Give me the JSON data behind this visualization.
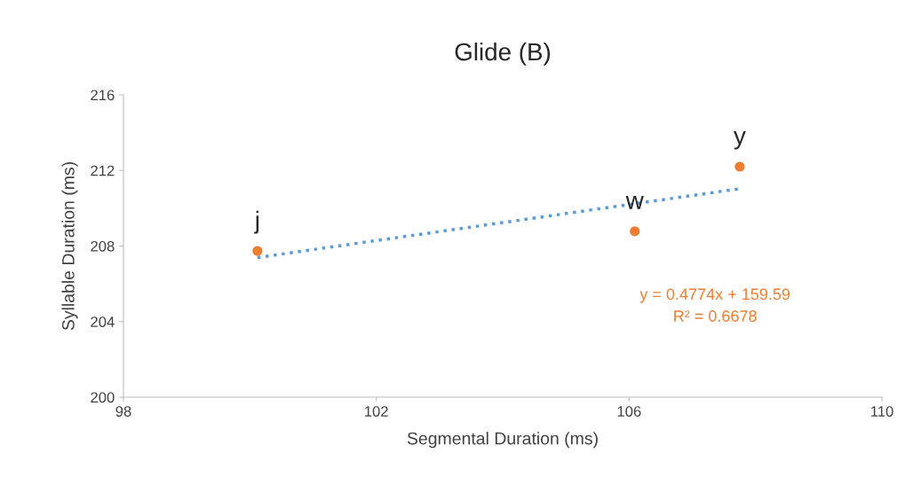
{
  "chart_data": {
    "type": "scatter",
    "title": "Glide (B)",
    "xlabel": "Segmental Duration (ms)",
    "ylabel": "Syllable Duration (ms)",
    "xlim": [
      98,
      110
    ],
    "xticks": [
      98,
      102,
      106,
      110
    ],
    "ylim": [
      200,
      216
    ],
    "yticks": [
      200,
      204,
      208,
      212,
      216
    ],
    "grid": false,
    "legend": false,
    "series": [
      {
        "color": "#ed7d31",
        "x": [
          100.12,
          106.09,
          107.75
        ],
        "values": [
          207.74,
          208.78,
          212.2
        ],
        "marker": "circle"
      },
      {
        "type": "line",
        "color": "#5b9bd5",
        "x": [
          100.12,
          107.75
        ],
        "values": [
          207.39,
          211.03
        ],
        "line_style": "dotted",
        "marker": "none"
      }
    ],
    "annotations": [
      {
        "text": "j",
        "x": 100.12,
        "y": 207.74
      },
      {
        "text": "w",
        "x": 106.09,
        "y": 208.78
      },
      {
        "text": "y",
        "x": 107.75,
        "y": 212.2
      },
      "y = 0.4774x + 159.59\nR² = 0.6678"
    ]
  }
}
